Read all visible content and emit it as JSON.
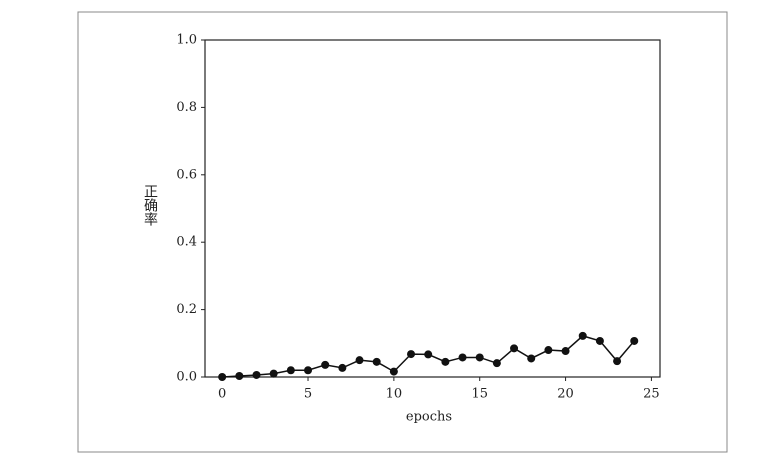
{
  "chart_data": {
    "type": "line",
    "x": [
      0,
      1,
      2,
      3,
      4,
      5,
      6,
      7,
      8,
      9,
      10,
      11,
      12,
      13,
      14,
      15,
      16,
      17,
      18,
      19,
      20,
      21,
      22,
      23,
      24
    ],
    "values": [
      0.0,
      0.003,
      0.006,
      0.01,
      0.02,
      0.02,
      0.036,
      0.027,
      0.05,
      0.045,
      0.016,
      0.068,
      0.067,
      0.045,
      0.058,
      0.058,
      0.041,
      0.085,
      0.055,
      0.08,
      0.077,
      0.122,
      0.107,
      0.047,
      0.107
    ],
    "color": "#111111",
    "xlabel": "epochs",
    "ylabel": "正确率",
    "xlim": [
      -1,
      25.5
    ],
    "ylim": [
      0,
      1
    ],
    "xticks": [
      0,
      5,
      10,
      15,
      20,
      25
    ],
    "yticks": [
      {
        "value": 0,
        "label": "0.0"
      },
      0.2,
      0.4,
      0.6,
      0.8,
      {
        "value": 1,
        "label": "1.0"
      }
    ]
  }
}
